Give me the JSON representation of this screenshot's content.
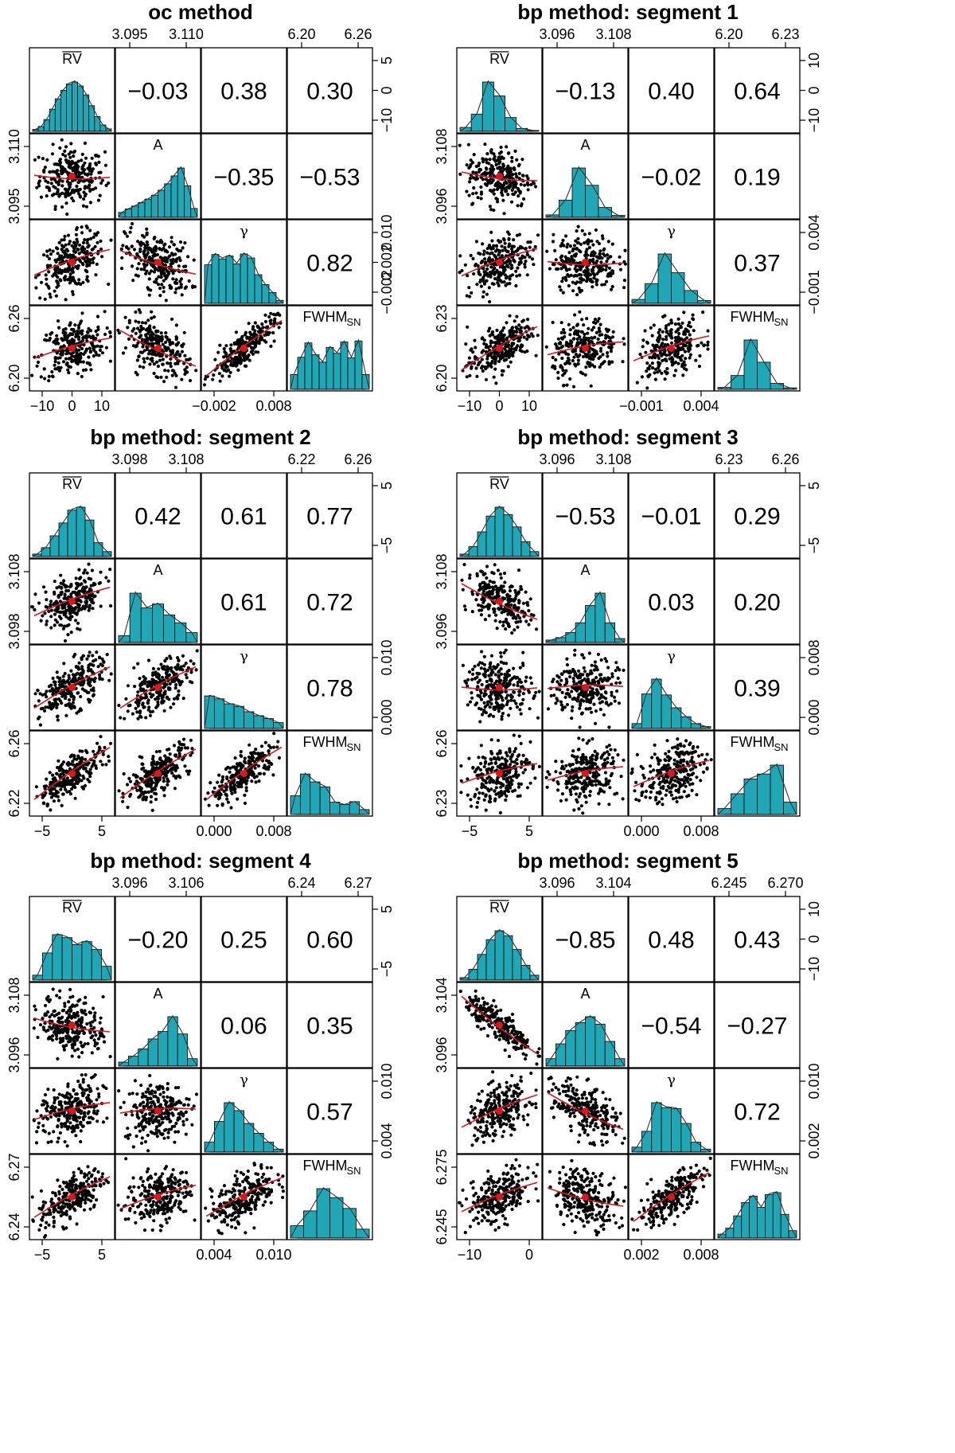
{
  "variable_labels": {
    "rv": "RV",
    "a": "A",
    "gamma": "γ",
    "fwhm": "FWHM",
    "fwhm_subscript": "SN"
  },
  "colors": {
    "histogram_fill": "#20a6b4",
    "points": "#000000",
    "smooth_line": "#e0151b"
  },
  "chart_data": [
    {
      "type": "scatter",
      "title": "oc method",
      "variables": [
        "RV",
        "A",
        "γ",
        "FWHM_SN"
      ],
      "top_ticks": {
        "a": [
          "3.095",
          "3.110"
        ],
        "fwhm": [
          "6.20",
          "6.26"
        ]
      },
      "right_ticks": {
        "rv": [
          "5",
          "0",
          "−10"
        ],
        "gamma": [
          "0.010",
          "0.002",
          "−0.002"
        ]
      },
      "left_ticks": {
        "a": [
          "3.110",
          "3.095"
        ],
        "fwhm": [
          "6.26",
          "6.20"
        ]
      },
      "bottom_ticks": {
        "rv": [
          "−10",
          "0",
          "10"
        ],
        "gamma": [
          "−0.002",
          "0.008"
        ]
      },
      "correlations": {
        "rv_a": "−0.03",
        "rv_gamma": "0.38",
        "rv_fwhm": "0.30",
        "a_gamma": "−0.35",
        "a_fwhm": "−0.53",
        "gamma_fwhm": "0.82"
      },
      "correlation_values": [
        -0.03,
        0.38,
        0.3,
        -0.35,
        -0.53,
        0.82
      ],
      "histograms": {
        "rv": [
          0.04,
          0.1,
          0.24,
          0.45,
          0.66,
          0.83,
          0.96,
          1.0,
          0.92,
          0.74,
          0.52,
          0.3,
          0.13,
          0.05
        ],
        "a": [
          0.1,
          0.17,
          0.23,
          0.3,
          0.37,
          0.45,
          0.55,
          0.68,
          0.84,
          1.0,
          0.64,
          0.18
        ],
        "gamma": [
          0.78,
          0.99,
          0.9,
          0.96,
          0.8,
          1.0,
          0.92,
          0.58,
          0.38,
          0.22,
          0.06
        ],
        "fwhm": [
          0.3,
          0.65,
          0.94,
          0.7,
          0.55,
          0.85,
          0.73,
          0.96,
          0.64,
          0.98,
          0.3
        ]
      }
    },
    {
      "type": "scatter",
      "title": "bp method: segment 1",
      "variables": [
        "RV",
        "A",
        "γ",
        "FWHM_SN"
      ],
      "top_ticks": {
        "a": [
          "3.096",
          "3.108"
        ],
        "fwhm": [
          "6.20",
          "6.23"
        ]
      },
      "right_ticks": {
        "rv": [
          "10",
          "0",
          "−10"
        ],
        "gamma": [
          "0.004",
          "−0.001"
        ]
      },
      "left_ticks": {
        "a": [
          "3.108",
          "3.096"
        ],
        "fwhm": [
          "6.23",
          "6.20"
        ]
      },
      "bottom_ticks": {
        "rv": [
          "−10",
          "0",
          "10"
        ],
        "gamma": [
          "−0.001",
          "0.004"
        ]
      },
      "correlations": {
        "rv_a": "−0.13",
        "rv_gamma": "0.40",
        "rv_fwhm": "0.64",
        "a_gamma": "−0.02",
        "a_fwhm": "0.19",
        "gamma_fwhm": "0.37"
      },
      "correlation_values": [
        -0.13,
        0.4,
        0.64,
        -0.02,
        0.19,
        0.37
      ],
      "histograms": {
        "rv": [
          0.08,
          0.35,
          1.0,
          0.72,
          0.28,
          0.06,
          0.02
        ],
        "a": [
          0.05,
          0.35,
          1.0,
          0.65,
          0.2,
          0.04
        ],
        "gamma": [
          0.08,
          0.4,
          1.0,
          0.62,
          0.26,
          0.06
        ],
        "fwhm": [
          0.04,
          0.28,
          1.0,
          0.55,
          0.12,
          0.03
        ]
      }
    },
    {
      "type": "scatter",
      "title": "bp method: segment 2",
      "variables": [
        "RV",
        "A",
        "γ",
        "FWHM_SN"
      ],
      "top_ticks": {
        "a": [
          "3.098",
          "3.108"
        ],
        "fwhm": [
          "6.22",
          "6.26"
        ]
      },
      "right_ticks": {
        "rv": [
          "5",
          "−5"
        ],
        "gamma": [
          "0.010",
          "0.000"
        ]
      },
      "left_ticks": {
        "a": [
          "3.108",
          "3.098"
        ],
        "fwhm": [
          "6.26",
          "6.22"
        ]
      },
      "bottom_ticks": {
        "rv": [
          "−5",
          "5"
        ],
        "gamma": [
          "0.000",
          "0.008"
        ]
      },
      "correlations": {
        "rv_a": "0.42",
        "rv_gamma": "0.61",
        "rv_fwhm": "0.77",
        "a_gamma": "0.61",
        "a_fwhm": "0.72",
        "gamma_fwhm": "0.78"
      },
      "correlation_values": [
        0.42,
        0.61,
        0.77,
        0.61,
        0.72,
        0.78
      ],
      "histograms": {
        "rv": [
          0.05,
          0.18,
          0.42,
          0.68,
          0.94,
          1.0,
          0.74,
          0.28,
          0.1
        ],
        "a": [
          0.14,
          1.0,
          0.7,
          0.78,
          0.56,
          0.4,
          0.2
        ],
        "gamma": [
          0.66,
          0.6,
          0.5,
          0.45,
          0.34,
          0.26,
          0.2,
          0.12
        ],
        "fwhm": [
          0.38,
          0.82,
          0.66,
          0.56,
          0.25,
          0.2,
          0.26,
          0.1
        ]
      }
    },
    {
      "type": "scatter",
      "title": "bp method: segment 3",
      "variables": [
        "RV",
        "A",
        "γ",
        "FWHM_SN"
      ],
      "top_ticks": {
        "a": [
          "3.096",
          "3.108"
        ],
        "fwhm": [
          "6.23",
          "6.26"
        ]
      },
      "right_ticks": {
        "rv": [
          "5",
          "−5"
        ],
        "gamma": [
          "0.008",
          "0.000"
        ]
      },
      "left_ticks": {
        "a": [
          "3.108",
          "3.096"
        ],
        "fwhm": [
          "6.26",
          "6.23"
        ]
      },
      "bottom_ticks": {
        "rv": [
          "−5",
          "5"
        ],
        "gamma": [
          "0.000",
          "0.008"
        ]
      },
      "correlations": {
        "rv_a": "−0.53",
        "rv_gamma": "−0.01",
        "rv_fwhm": "0.29",
        "a_gamma": "0.03",
        "a_fwhm": "0.20",
        "gamma_fwhm": "0.39"
      },
      "correlation_values": [
        -0.53,
        -0.01,
        0.29,
        0.03,
        0.2,
        0.39
      ],
      "histograms": {
        "rv": [
          0.05,
          0.2,
          0.5,
          0.82,
          1.0,
          0.85,
          0.6,
          0.3,
          0.1
        ],
        "a": [
          0.05,
          0.1,
          0.2,
          0.4,
          0.75,
          1.0,
          0.4,
          0.08
        ],
        "gamma": [
          0.1,
          0.7,
          1.0,
          0.68,
          0.42,
          0.24,
          0.1,
          0.04
        ],
        "fwhm": [
          0.12,
          0.42,
          0.72,
          0.82,
          1.0,
          0.25
        ]
      }
    },
    {
      "type": "scatter",
      "title": "bp method: segment 4",
      "variables": [
        "RV",
        "A",
        "γ",
        "FWHM_SN"
      ],
      "top_ticks": {
        "a": [
          "3.096",
          "3.106"
        ],
        "fwhm": [
          "6.24",
          "6.27"
        ]
      },
      "right_ticks": {
        "rv": [
          "5",
          "−5"
        ],
        "gamma": [
          "0.010",
          "0.004"
        ]
      },
      "left_ticks": {
        "a": [
          "3.108",
          "3.096"
        ],
        "fwhm": [
          "6.27",
          "6.24"
        ]
      },
      "bottom_ticks": {
        "rv": [
          "−5",
          "5"
        ],
        "gamma": [
          "0.004",
          "0.010"
        ]
      },
      "correlations": {
        "rv_a": "−0.20",
        "rv_gamma": "0.25",
        "rv_fwhm": "0.60",
        "a_gamma": "0.06",
        "a_fwhm": "0.35",
        "gamma_fwhm": "0.57"
      },
      "correlation_values": [
        -0.2,
        0.25,
        0.6,
        0.06,
        0.35,
        0.57
      ],
      "histograms": {
        "rv": [
          0.1,
          0.55,
          0.92,
          0.86,
          0.72,
          0.78,
          0.62,
          0.28
        ],
        "a": [
          0.08,
          0.2,
          0.35,
          0.55,
          0.7,
          1.0,
          0.65,
          0.15
        ],
        "gamma": [
          0.2,
          0.62,
          1.0,
          0.84,
          0.58,
          0.38,
          0.2,
          0.06
        ],
        "fwhm": [
          0.25,
          0.55,
          1.0,
          0.82,
          0.6,
          0.18
        ]
      }
    },
    {
      "type": "scatter",
      "title": "bp method: segment 5",
      "variables": [
        "RV",
        "A",
        "γ",
        "FWHM_SN"
      ],
      "top_ticks": {
        "a": [
          "3.096",
          "3.104"
        ],
        "fwhm": [
          "6.245",
          "6.270"
        ]
      },
      "right_ticks": {
        "rv": [
          "10",
          "0",
          "−10"
        ],
        "gamma": [
          "0.010",
          "0.002"
        ]
      },
      "left_ticks": {
        "a": [
          "3.104",
          "3.096"
        ],
        "fwhm": [
          "6.275",
          "6.245"
        ]
      },
      "bottom_ticks": {
        "rv": [
          "−10",
          "0"
        ],
        "gamma": [
          "0.002",
          "0.008"
        ]
      },
      "correlations": {
        "rv_a": "−0.85",
        "rv_gamma": "0.48",
        "rv_fwhm": "0.43",
        "a_gamma": "−0.54",
        "a_fwhm": "−0.27",
        "gamma_fwhm": "0.72"
      },
      "correlation_values": [
        -0.85,
        0.48,
        0.43,
        -0.54,
        -0.27,
        0.72
      ],
      "histograms": {
        "rv": [
          0.05,
          0.22,
          0.52,
          0.82,
          1.0,
          0.9,
          0.62,
          0.3,
          0.1
        ],
        "a": [
          0.15,
          0.45,
          0.72,
          0.88,
          1.0,
          0.85,
          0.5,
          0.15
        ],
        "gamma": [
          0.1,
          0.42,
          1.0,
          0.9,
          0.88,
          0.58,
          0.2,
          0.06
        ],
        "fwhm": [
          0.08,
          0.2,
          0.45,
          0.72,
          0.85,
          0.62,
          0.88,
          0.92,
          0.48,
          0.15
        ]
      }
    }
  ]
}
